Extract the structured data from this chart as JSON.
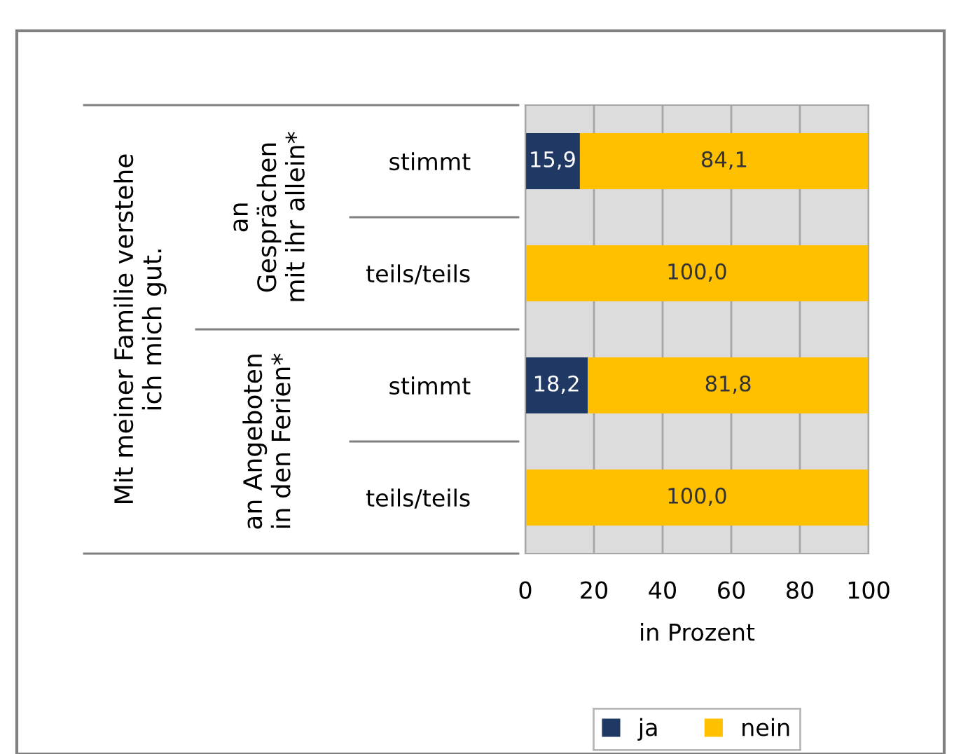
{
  "chart_data": {
    "type": "bar",
    "orientation": "horizontal",
    "stacked": true,
    "categories": [
      "stimmt",
      "teils/teils",
      "stimmt",
      "teils/teils"
    ],
    "series": [
      {
        "name": "ja",
        "color": "#1f3864",
        "values": [
          15.9,
          0,
          18.2,
          0
        ],
        "value_labels": [
          "15,9",
          null,
          "18,2",
          null
        ]
      },
      {
        "name": "nein",
        "color": "#ffc000",
        "values": [
          84.1,
          100.0,
          81.8,
          100.0
        ],
        "value_labels": [
          "84,1",
          "100,0",
          "81,8",
          "100,0"
        ]
      }
    ],
    "xlim": [
      0,
      100
    ],
    "xticks": [
      0,
      20,
      40,
      60,
      80,
      100
    ],
    "xlabel": "in Prozent",
    "annotations": [
      "Mit meiner Familie verstehe\nich mich gut.",
      "an\nGesprächen\nmit ihr allein*",
      "an Angeboten\nin den Ferien*"
    ],
    "grid": "x",
    "legend": "bottom"
  }
}
